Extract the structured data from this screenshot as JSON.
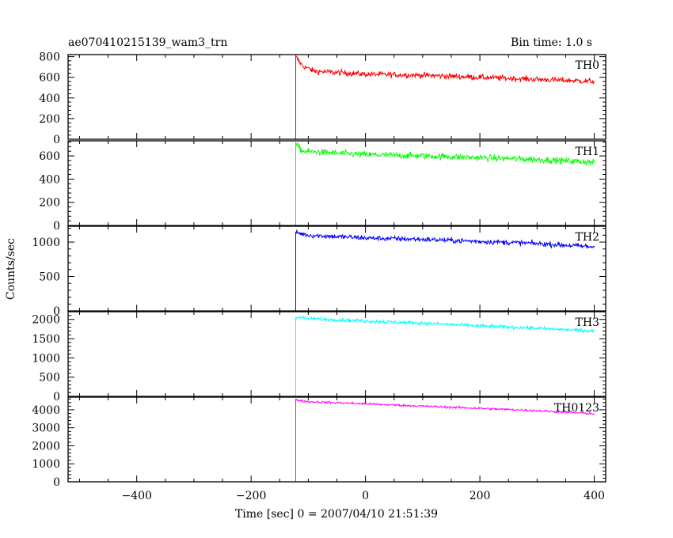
{
  "header": {
    "title": "ae070410215139_wam3_trn",
    "bin_time": "Bin time: 1.0 s"
  },
  "chart_data": {
    "type": "line",
    "xlabel": "Time [sec] 0 = 2007/04/10 21:51:39",
    "ylabel": "Counts/sec",
    "xlim": [
      -520,
      420
    ],
    "x_ticks": [
      -400,
      -200,
      0,
      200,
      400
    ],
    "x_tick_labels": [
      "−400",
      "−200",
      "0",
      "200",
      "400"
    ],
    "onset_time": -122,
    "data_start": -500,
    "data_end": 400,
    "bin_time_s": 1.0,
    "panels": [
      {
        "name": "TH0",
        "color": "#ff0000",
        "ylim": [
          0,
          820
        ],
        "y_ticks": [
          0,
          200,
          400,
          600,
          800
        ],
        "y_tick_labels": [
          "0",
          "200",
          "400",
          "600",
          "800"
        ],
        "pre_level": 0,
        "profile": [
          [
            -122,
            800
          ],
          [
            -110,
            710
          ],
          [
            -90,
            660
          ],
          [
            0,
            630
          ],
          [
            100,
            620
          ],
          [
            200,
            600
          ],
          [
            300,
            580
          ],
          [
            400,
            560
          ]
        ],
        "noise": 55
      },
      {
        "name": "TH1",
        "color": "#00ff00",
        "ylim": [
          0,
          730
        ],
        "y_ticks": [
          0,
          200,
          400,
          600
        ],
        "y_tick_labels": [
          "0",
          "200",
          "400",
          "600"
        ],
        "pre_level": 0,
        "profile": [
          [
            -122,
            700
          ],
          [
            -110,
            640
          ],
          [
            0,
            610
          ],
          [
            100,
            600
          ],
          [
            200,
            585
          ],
          [
            300,
            570
          ],
          [
            400,
            545
          ]
        ],
        "noise": 55
      },
      {
        "name": "TH2",
        "color": "#0000ff",
        "ylim": [
          0,
          1230
        ],
        "y_ticks": [
          0,
          500,
          1000
        ],
        "y_tick_labels": [
          "0",
          "500",
          "1000"
        ],
        "pre_level": 0,
        "profile": [
          [
            -122,
            1140
          ],
          [
            -100,
            1100
          ],
          [
            0,
            1060
          ],
          [
            100,
            1040
          ],
          [
            200,
            1010
          ],
          [
            300,
            980
          ],
          [
            400,
            930
          ]
        ],
        "noise": 75
      },
      {
        "name": "TH3",
        "color": "#00ffff",
        "ylim": [
          0,
          2200
        ],
        "y_ticks": [
          0,
          500,
          1000,
          1500,
          2000
        ],
        "y_tick_labels": [
          "0",
          "500",
          "1000",
          "1500",
          "2000"
        ],
        "pre_level": 0,
        "profile": [
          [
            -122,
            2070
          ],
          [
            -100,
            2020
          ],
          [
            0,
            1960
          ],
          [
            100,
            1900
          ],
          [
            200,
            1830
          ],
          [
            300,
            1770
          ],
          [
            400,
            1700
          ]
        ],
        "noise": 90
      },
      {
        "name": "TH0123",
        "color": "#ff00ff",
        "ylim": [
          0,
          4700
        ],
        "y_ticks": [
          0,
          1000,
          2000,
          3000,
          4000
        ],
        "y_tick_labels": [
          "0",
          "1000",
          "2000",
          "3000",
          "4000"
        ],
        "pre_level": 0,
        "profile": [
          [
            -122,
            4550
          ],
          [
            -100,
            4450
          ],
          [
            0,
            4330
          ],
          [
            100,
            4200
          ],
          [
            200,
            4080
          ],
          [
            300,
            3950
          ],
          [
            400,
            3780
          ]
        ],
        "noise": 120
      }
    ]
  }
}
